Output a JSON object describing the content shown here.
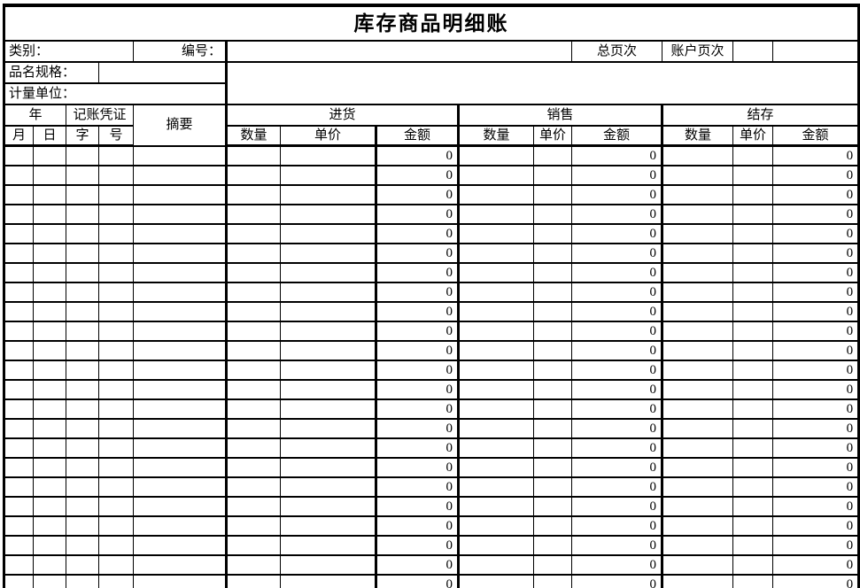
{
  "title": "库存商品明细账",
  "info": {
    "category_label": "类别：",
    "code_label": "编号：",
    "total_page_label": "总页次",
    "account_page_label": "账户页次",
    "product_spec_label": "品名规格：",
    "unit_label": "计量单位："
  },
  "header": {
    "year": "年",
    "voucher": "记账凭证",
    "summary": "摘要",
    "purchase": "进货",
    "sales": "销售",
    "balance": "结存",
    "month": "月",
    "day": "日",
    "char": "字",
    "number": "号",
    "quantity": "数量",
    "unit_price": "单价",
    "amount": "金额"
  },
  "table": {
    "amount_column_indexes": [
      7,
      10,
      13
    ],
    "thick_right_column_indexes": [
      4,
      6,
      7,
      10,
      13
    ],
    "rows": [
      [
        "",
        "",
        "",
        "",
        "",
        "",
        "",
        "0",
        "",
        "",
        "0",
        "",
        "",
        "0"
      ],
      [
        "",
        "",
        "",
        "",
        "",
        "",
        "",
        "0",
        "",
        "",
        "0",
        "",
        "",
        "0"
      ],
      [
        "",
        "",
        "",
        "",
        "",
        "",
        "",
        "0",
        "",
        "",
        "0",
        "",
        "",
        "0"
      ],
      [
        "",
        "",
        "",
        "",
        "",
        "",
        "",
        "0",
        "",
        "",
        "0",
        "",
        "",
        "0"
      ],
      [
        "",
        "",
        "",
        "",
        "",
        "",
        "",
        "0",
        "",
        "",
        "0",
        "",
        "",
        "0"
      ],
      [
        "",
        "",
        "",
        "",
        "",
        "",
        "",
        "0",
        "",
        "",
        "0",
        "",
        "",
        "0"
      ],
      [
        "",
        "",
        "",
        "",
        "",
        "",
        "",
        "0",
        "",
        "",
        "0",
        "",
        "",
        "0"
      ],
      [
        "",
        "",
        "",
        "",
        "",
        "",
        "",
        "0",
        "",
        "",
        "0",
        "",
        "",
        "0"
      ],
      [
        "",
        "",
        "",
        "",
        "",
        "",
        "",
        "0",
        "",
        "",
        "0",
        "",
        "",
        "0"
      ],
      [
        "",
        "",
        "",
        "",
        "",
        "",
        "",
        "0",
        "",
        "",
        "0",
        "",
        "",
        "0"
      ],
      [
        "",
        "",
        "",
        "",
        "",
        "",
        "",
        "0",
        "",
        "",
        "0",
        "",
        "",
        "0"
      ],
      [
        "",
        "",
        "",
        "",
        "",
        "",
        "",
        "0",
        "",
        "",
        "0",
        "",
        "",
        "0"
      ],
      [
        "",
        "",
        "",
        "",
        "",
        "",
        "",
        "0",
        "",
        "",
        "0",
        "",
        "",
        "0"
      ],
      [
        "",
        "",
        "",
        "",
        "",
        "",
        "",
        "0",
        "",
        "",
        "0",
        "",
        "",
        "0"
      ],
      [
        "",
        "",
        "",
        "",
        "",
        "",
        "",
        "0",
        "",
        "",
        "0",
        "",
        "",
        "0"
      ],
      [
        "",
        "",
        "",
        "",
        "",
        "",
        "",
        "0",
        "",
        "",
        "0",
        "",
        "",
        "0"
      ],
      [
        "",
        "",
        "",
        "",
        "",
        "",
        "",
        "0",
        "",
        "",
        "0",
        "",
        "",
        "0"
      ],
      [
        "",
        "",
        "",
        "",
        "",
        "",
        "",
        "0",
        "",
        "",
        "0",
        "",
        "",
        "0"
      ],
      [
        "",
        "",
        "",
        "",
        "",
        "",
        "",
        "0",
        "",
        "",
        "0",
        "",
        "",
        "0"
      ],
      [
        "",
        "",
        "",
        "",
        "",
        "",
        "",
        "0",
        "",
        "",
        "0",
        "",
        "",
        "0"
      ],
      [
        "",
        "",
        "",
        "",
        "",
        "",
        "",
        "0",
        "",
        "",
        "0",
        "",
        "",
        "0"
      ],
      [
        "",
        "",
        "",
        "",
        "",
        "",
        "",
        "0",
        "",
        "",
        "0",
        "",
        "",
        "0"
      ],
      [
        "",
        "",
        "",
        "",
        "",
        "",
        "",
        "0",
        "",
        "",
        "0",
        "",
        "",
        "0"
      ],
      [
        "",
        "",
        "",
        "",
        "",
        "",
        "",
        "0",
        "",
        "",
        "0",
        "",
        "",
        "0"
      ]
    ]
  },
  "colors": {
    "border": "#000000",
    "background": "#ffffff",
    "text": "#000000"
  }
}
